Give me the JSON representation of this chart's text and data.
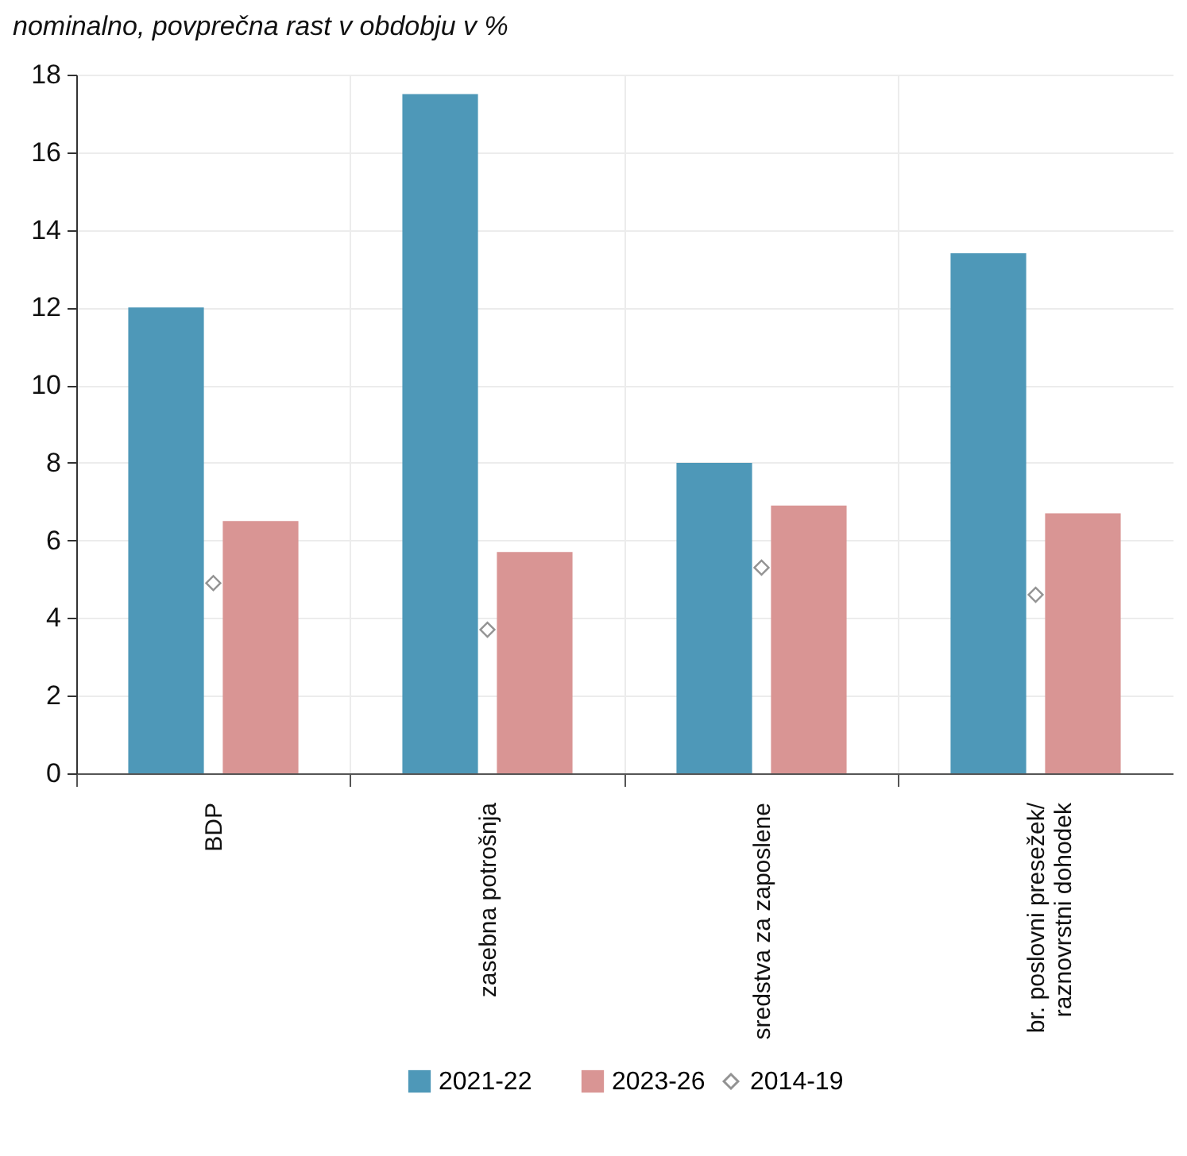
{
  "chart_data": {
    "type": "bar",
    "title": "nominalno, povprečna rast v obdobju v %",
    "categories": [
      "BDP",
      "zasebna potrošnja",
      "sredstva za zaposlene",
      "br. poslovni presežek/\nraznovrstni dohodek"
    ],
    "series": [
      {
        "name": "2021-22",
        "color": "#4e98b8",
        "values": [
          12.0,
          17.5,
          8.0,
          13.4
        ]
      },
      {
        "name": "2023-26",
        "color": "#d99594",
        "values": [
          6.5,
          5.7,
          6.9,
          6.7
        ]
      },
      {
        "name": "2014-19",
        "type": "scatter",
        "marker": "diamond",
        "color": "#666666",
        "values": [
          4.9,
          3.7,
          5.3,
          4.6
        ]
      }
    ],
    "ylim": [
      0,
      18
    ],
    "yticks": [
      0,
      2,
      4,
      6,
      8,
      10,
      12,
      14,
      16,
      18
    ],
    "grid": true,
    "legend": "bottom"
  }
}
